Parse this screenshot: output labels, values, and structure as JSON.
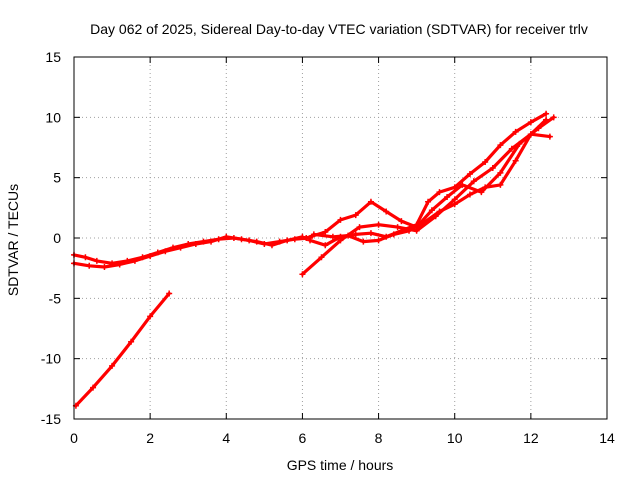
{
  "chart_data": {
    "type": "scatter",
    "title": "Day 062 of 2025, Sidereal Day-to-day VTEC variation (SDTVAR) for receiver trlv",
    "xlabel": "GPS time / hours",
    "ylabel": "SDTVAR / TECUs",
    "xlim": [
      0,
      14
    ],
    "ylim": [
      -15,
      15
    ],
    "xticks": [
      "0",
      "2",
      "4",
      "6",
      "8",
      "10",
      "12",
      "14"
    ],
    "yticks": [
      "15",
      "10",
      "5",
      "0",
      "-5",
      "-10",
      "-15"
    ],
    "grid": true,
    "colors": {
      "series": "#ff0000"
    },
    "series": [
      {
        "name": "satellite-arc-1",
        "points": [
          [
            0,
            -1.4
          ],
          [
            0.3,
            -1.6
          ],
          [
            0.6,
            -1.9
          ],
          [
            1,
            -2.1
          ],
          [
            1.4,
            -1.9
          ],
          [
            1.8,
            -1.6
          ],
          [
            2.2,
            -1.2
          ],
          [
            2.6,
            -0.8
          ],
          [
            3,
            -0.5
          ],
          [
            3.4,
            -0.3
          ],
          [
            3.8,
            -0.1
          ],
          [
            4.2,
            0
          ],
          [
            4.6,
            -0.2
          ],
          [
            5,
            -0.5
          ],
          [
            5.4,
            -0.3
          ],
          [
            5.8,
            -0.1
          ],
          [
            6.2,
            0
          ]
        ]
      },
      {
        "name": "satellite-arc-2",
        "points": [
          [
            0,
            -2.1
          ],
          [
            0.4,
            -2.3
          ],
          [
            0.8,
            -2.4
          ],
          [
            1.2,
            -2.2
          ],
          [
            1.6,
            -1.9
          ],
          [
            2,
            -1.5
          ],
          [
            2.4,
            -1.1
          ],
          [
            2.8,
            -0.8
          ],
          [
            3.2,
            -0.5
          ],
          [
            3.6,
            -0.3
          ],
          [
            4,
            0.1
          ],
          [
            4.4,
            -0.1
          ],
          [
            4.8,
            -0.3
          ],
          [
            5.2,
            -0.6
          ],
          [
            5.6,
            -0.2
          ],
          [
            6,
            0.1
          ]
        ]
      },
      {
        "name": "satellite-arc-3",
        "points": [
          [
            0.05,
            -13.9
          ],
          [
            0.5,
            -12.4
          ],
          [
            1,
            -10.6
          ],
          [
            1.5,
            -8.6
          ],
          [
            2,
            -6.5
          ],
          [
            2.5,
            -4.6
          ]
        ]
      },
      {
        "name": "satellite-arc-4",
        "points": [
          [
            6,
            -3
          ],
          [
            6.5,
            -1.6
          ],
          [
            7,
            -0.2
          ],
          [
            7.5,
            0.9
          ],
          [
            8,
            1.1
          ],
          [
            8.5,
            0.9
          ],
          [
            9,
            0.6
          ],
          [
            9.5,
            1.8
          ],
          [
            10,
            3.2
          ],
          [
            10.5,
            4.7
          ],
          [
            11,
            5.8
          ],
          [
            11.5,
            7.4
          ],
          [
            12,
            8.6
          ],
          [
            12.5,
            8.4
          ]
        ]
      },
      {
        "name": "satellite-arc-5",
        "points": [
          [
            6.1,
            0
          ],
          [
            6.6,
            0.5
          ],
          [
            7,
            1.5
          ],
          [
            7.4,
            1.9
          ],
          [
            7.8,
            3
          ],
          [
            8.2,
            2.2
          ],
          [
            8.6,
            1.4
          ],
          [
            9,
            0.9
          ],
          [
            9.4,
            2.3
          ],
          [
            9.8,
            3.4
          ],
          [
            10.2,
            4.4
          ],
          [
            10.7,
            3.8
          ],
          [
            11.2,
            5.4
          ],
          [
            11.7,
            7.8
          ],
          [
            12.2,
            9.1
          ],
          [
            12.6,
            10
          ]
        ]
      },
      {
        "name": "satellite-arc-6",
        "points": [
          [
            6.3,
            0.3
          ],
          [
            6.8,
            0.1
          ],
          [
            7.2,
            0.2
          ],
          [
            7.6,
            -0.3
          ],
          [
            8,
            -0.2
          ],
          [
            8.4,
            0.3
          ],
          [
            8.8,
            0.6
          ],
          [
            9.2,
            1.3
          ],
          [
            9.6,
            2.2
          ],
          [
            10,
            2.8
          ],
          [
            10.4,
            3.6
          ],
          [
            10.8,
            4.2
          ],
          [
            11.2,
            4.4
          ],
          [
            11.6,
            6.4
          ],
          [
            12,
            8.6
          ],
          [
            12.4,
            9.8
          ]
        ]
      },
      {
        "name": "satellite-arc-7",
        "points": [
          [
            6.2,
            -0.2
          ],
          [
            6.6,
            -0.6
          ],
          [
            7,
            0.1
          ],
          [
            7.4,
            0.3
          ],
          [
            7.8,
            0.4
          ],
          [
            8.2,
            0.1
          ],
          [
            8.6,
            0.6
          ],
          [
            9,
            1.1
          ],
          [
            9.3,
            3
          ],
          [
            9.6,
            3.8
          ],
          [
            10,
            4.2
          ],
          [
            10.4,
            5.3
          ],
          [
            10.8,
            6.3
          ],
          [
            11.2,
            7.7
          ],
          [
            11.6,
            8.8
          ],
          [
            12,
            9.6
          ],
          [
            12.4,
            10.3
          ]
        ]
      }
    ]
  }
}
